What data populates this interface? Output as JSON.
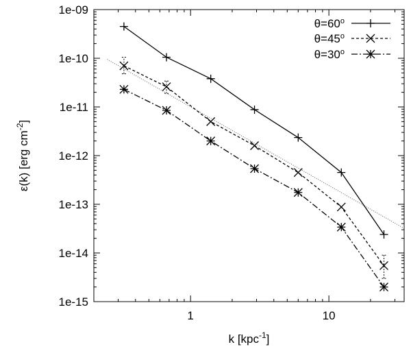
{
  "chart_data": {
    "type": "line",
    "xscale": "log",
    "yscale": "log",
    "xlabel": "k [kpc",
    "xlabel_sup": "-1",
    "xlabel_end": "]",
    "ylabel": "ε(k)  [erg cm",
    "ylabel_sup": "-2",
    "ylabel_end": "]",
    "xlim": [
      0.2,
      35
    ],
    "ylim": [
      1e-15,
      1e-09
    ],
    "xticks": [
      {
        "value": 1,
        "label": "1"
      },
      {
        "value": 10,
        "label": "10"
      }
    ],
    "yticks": [
      {
        "value": 1e-09,
        "label": "1e-09"
      },
      {
        "value": 1e-10,
        "label": "1e-10"
      },
      {
        "value": 1e-11,
        "label": "1e-11"
      },
      {
        "value": 1e-12,
        "label": "1e-12"
      },
      {
        "value": 1e-13,
        "label": "1e-13"
      },
      {
        "value": 1e-14,
        "label": "1e-14"
      },
      {
        "value": 1e-15,
        "label": "1e-15"
      }
    ],
    "grid": false,
    "legend_position": "top-right",
    "x": [
      0.33,
      0.67,
      1.4,
      2.9,
      6.0,
      12.3,
      25.0
    ],
    "series": [
      {
        "name": "θ=60",
        "name_sup": "o",
        "values": [
          4.5e-10,
          1.05e-10,
          3.8e-11,
          8.8e-12,
          2.35e-12,
          4.5e-13,
          2.4e-14
        ],
        "marker": "plus",
        "dash": "none"
      },
      {
        "name": "θ=45",
        "name_sup": "o",
        "values": [
          7e-11,
          2.6e-11,
          5e-12,
          1.6e-12,
          4.5e-13,
          8.8e-14,
          5.5e-15
        ],
        "errors": [
          [
            4.8e-11,
            1.05e-10
          ],
          [
            1.9e-11,
            3.4e-11
          ],
          null,
          null,
          null,
          null,
          [
            3e-15,
            9e-15
          ]
        ],
        "marker": "cross",
        "dash": "4,3"
      },
      {
        "name": "θ=30",
        "name_sup": "o",
        "values": [
          2.3e-11,
          8.5e-12,
          2e-12,
          5.4e-13,
          1.75e-13,
          3.4e-14,
          2e-15
        ],
        "marker": "star",
        "dash": "9,3,2,3"
      }
    ],
    "reference_line": {
      "points": [
        [
          0.25,
          9.5e-11
        ],
        [
          35,
          3.2e-14
        ]
      ],
      "dash": "1,2"
    }
  }
}
